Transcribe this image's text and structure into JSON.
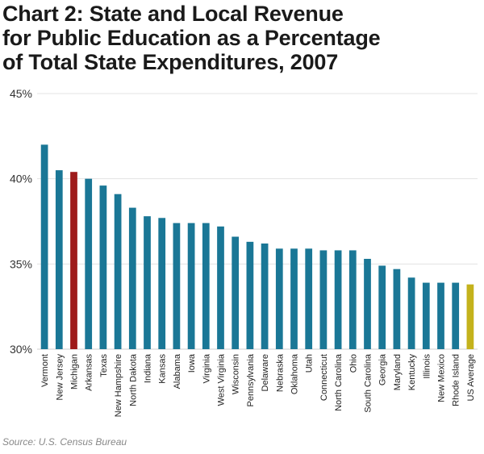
{
  "title_lines": [
    "Chart 2: State and Local Revenue",
    "for Public Education as a Percentage",
    "of Total State Expenditures, 2007"
  ],
  "source": "Source: U.S. Census Bureau",
  "colors": {
    "default_bar": "#1a7796",
    "highlight_bar": "#9e1a1a",
    "average_bar": "#c4b21c",
    "gridline": "#e3e3e3",
    "axis": "#cfcfcf"
  },
  "chart_data": {
    "type": "bar",
    "title": "Chart 2: State and Local Revenue for Public Education as a Percentage of Total State Expenditures, 2007",
    "xlabel": "",
    "ylabel": "",
    "ylim": [
      30,
      45
    ],
    "yticks": [
      30,
      35,
      40,
      45
    ],
    "ytick_labels": [
      "30%",
      "35%",
      "40%",
      "45%"
    ],
    "grid": true,
    "categories": [
      "Vermont",
      "New Jersey",
      "Michigan",
      "Arkansas",
      "Texas",
      "New Hampshire",
      "North Dakota",
      "Indiana",
      "Kansas",
      "Alabama",
      "Iowa",
      "Virginia",
      "West Virginia",
      "Wisconsin",
      "Pennsylvania",
      "Delaware",
      "Nebraska",
      "Oklahoma",
      "Utah",
      "Connecticut",
      "North Carolina",
      "Ohio",
      "South Carolina",
      "Georgia",
      "Maryland",
      "Kentucky",
      "Illinois",
      "New Mexico",
      "Rhode Island",
      "US Average"
    ],
    "values": [
      42.0,
      40.5,
      40.4,
      40.0,
      39.6,
      39.1,
      38.3,
      37.8,
      37.7,
      37.4,
      37.4,
      37.4,
      37.2,
      36.6,
      36.3,
      36.2,
      35.9,
      35.9,
      35.9,
      35.8,
      35.8,
      35.8,
      35.3,
      34.9,
      34.7,
      34.2,
      33.9,
      33.9,
      33.9,
      33.8
    ],
    "highlight_categories": [
      "Michigan"
    ],
    "average_categories": [
      "US Average"
    ]
  }
}
